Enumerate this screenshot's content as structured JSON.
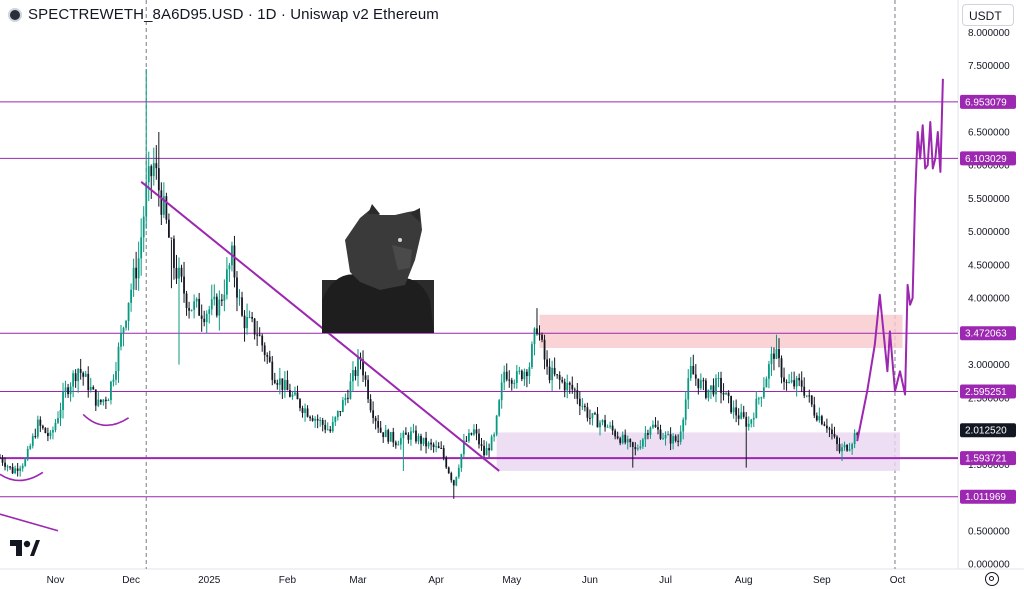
{
  "header": {
    "title": "SPECTREWETH_8A6D95.USD · 1D · Uniswap v2 Ethereum",
    "currency": "USDT"
  },
  "colors": {
    "up": "#089981",
    "down": "#131722",
    "accent": "#9c27b0",
    "resistance_zone": "#f8c8cc",
    "support_zone": "#ead6f0",
    "current_price_bg": "#131722"
  },
  "chart_data": {
    "type": "candlestick",
    "y_axis": {
      "range": [
        0,
        8.2
      ],
      "ticks": [
        "8.000000",
        "7.500000",
        "7.000000",
        "6.500000",
        "6.000000",
        "5.500000",
        "5.000000",
        "4.500000",
        "4.000000",
        "3.500000",
        "3.000000",
        "2.500000",
        "2.000000",
        "1.500000",
        "1.000000",
        "0.500000",
        "0.000000"
      ]
    },
    "x_axis": {
      "range": [
        "2024-10-10",
        "2025-10-25"
      ],
      "ticks": [
        {
          "label": "Nov",
          "date": "2024-11-01"
        },
        {
          "label": "Dec",
          "date": "2024-12-01"
        },
        {
          "label": "2025",
          "date": "2025-01-01"
        },
        {
          "label": "Feb",
          "date": "2025-02-01"
        },
        {
          "label": "Mar",
          "date": "2025-03-01"
        },
        {
          "label": "Apr",
          "date": "2025-04-01"
        },
        {
          "label": "May",
          "date": "2025-05-01"
        },
        {
          "label": "Jun",
          "date": "2025-06-01"
        },
        {
          "label": "Jul",
          "date": "2025-07-01"
        },
        {
          "label": "Aug",
          "date": "2025-08-01"
        },
        {
          "label": "Sep",
          "date": "2025-09-01"
        },
        {
          "label": "Oct",
          "date": "2025-10-01"
        }
      ]
    },
    "series": [
      {
        "price_path": [
          {
            "date": "2024-10-10",
            "value": 1.6
          },
          {
            "date": "2024-10-15",
            "value": 1.4
          },
          {
            "date": "2024-10-20",
            "value": 1.55
          },
          {
            "date": "2024-10-25",
            "value": 2.1
          },
          {
            "date": "2024-10-30",
            "value": 1.9
          },
          {
            "date": "2024-11-05",
            "value": 2.6
          },
          {
            "date": "2024-11-10",
            "value": 2.95
          },
          {
            "date": "2024-11-14",
            "value": 2.7
          },
          {
            "date": "2024-11-18",
            "value": 2.4
          },
          {
            "date": "2024-11-22",
            "value": 2.55
          },
          {
            "date": "2024-11-26",
            "value": 3.2
          },
          {
            "date": "2024-11-30",
            "value": 4.0
          },
          {
            "date": "2024-12-04",
            "value": 4.6
          },
          {
            "date": "2024-12-07",
            "value": 5.6
          },
          {
            "date": "2024-12-10",
            "value": 6.0
          },
          {
            "date": "2024-12-14",
            "value": 5.3
          },
          {
            "date": "2024-12-18",
            "value": 4.5
          },
          {
            "date": "2024-12-24",
            "value": 3.9
          },
          {
            "date": "2024-12-30",
            "value": 3.8
          },
          {
            "date": "2025-01-05",
            "value": 3.9
          },
          {
            "date": "2025-01-10",
            "value": 4.6
          },
          {
            "date": "2025-01-14",
            "value": 3.7
          },
          {
            "date": "2025-01-20",
            "value": 3.5
          },
          {
            "date": "2025-01-26",
            "value": 2.9
          },
          {
            "date": "2025-02-01",
            "value": 2.6
          },
          {
            "date": "2025-02-06",
            "value": 2.4
          },
          {
            "date": "2025-02-12",
            "value": 2.2
          },
          {
            "date": "2025-02-18",
            "value": 2.0
          },
          {
            "date": "2025-02-24",
            "value": 2.5
          },
          {
            "date": "2025-03-02",
            "value": 3.1
          },
          {
            "date": "2025-03-06",
            "value": 2.4
          },
          {
            "date": "2025-03-10",
            "value": 2.0
          },
          {
            "date": "2025-03-16",
            "value": 1.85
          },
          {
            "date": "2025-03-22",
            "value": 1.95
          },
          {
            "date": "2025-03-28",
            "value": 1.8
          },
          {
            "date": "2025-04-03",
            "value": 1.7
          },
          {
            "date": "2025-04-08",
            "value": 1.2
          },
          {
            "date": "2025-04-12",
            "value": 1.8
          },
          {
            "date": "2025-04-16",
            "value": 2.0
          },
          {
            "date": "2025-04-20",
            "value": 1.65
          },
          {
            "date": "2025-04-24",
            "value": 1.9
          },
          {
            "date": "2025-04-28",
            "value": 2.9
          },
          {
            "date": "2025-05-03",
            "value": 2.8
          },
          {
            "date": "2025-05-08",
            "value": 3.0
          },
          {
            "date": "2025-05-11",
            "value": 3.6
          },
          {
            "date": "2025-05-15",
            "value": 2.9
          },
          {
            "date": "2025-05-20",
            "value": 2.75
          },
          {
            "date": "2025-05-26",
            "value": 2.6
          },
          {
            "date": "2025-06-01",
            "value": 2.2
          },
          {
            "date": "2025-06-07",
            "value": 2.1
          },
          {
            "date": "2025-06-13",
            "value": 1.9
          },
          {
            "date": "2025-06-19",
            "value": 1.7
          },
          {
            "date": "2025-06-25",
            "value": 2.1
          },
          {
            "date": "2025-07-01",
            "value": 1.9
          },
          {
            "date": "2025-07-06",
            "value": 1.85
          },
          {
            "date": "2025-07-11",
            "value": 2.9
          },
          {
            "date": "2025-07-17",
            "value": 2.6
          },
          {
            "date": "2025-07-22",
            "value": 2.7
          },
          {
            "date": "2025-07-28",
            "value": 2.3
          },
          {
            "date": "2025-08-03",
            "value": 2.1
          },
          {
            "date": "2025-08-08",
            "value": 2.6
          },
          {
            "date": "2025-08-13",
            "value": 3.2
          },
          {
            "date": "2025-08-18",
            "value": 2.7
          },
          {
            "date": "2025-08-24",
            "value": 2.7
          },
          {
            "date": "2025-08-29",
            "value": 2.3
          },
          {
            "date": "2025-09-03",
            "value": 2.1
          },
          {
            "date": "2025-09-08",
            "value": 1.7
          },
          {
            "date": "2025-09-12",
            "value": 1.8
          },
          {
            "date": "2025-09-15",
            "value": 2.01
          }
        ],
        "projection": [
          {
            "date": "2025-09-15",
            "value": 1.85
          },
          {
            "date": "2025-09-19",
            "value": 2.6
          },
          {
            "date": "2025-09-22",
            "value": 3.3
          },
          {
            "date": "2025-09-24",
            "value": 4.05
          },
          {
            "date": "2025-09-27",
            "value": 2.9
          },
          {
            "date": "2025-09-28",
            "value": 3.5
          },
          {
            "date": "2025-09-30",
            "value": 2.6
          },
          {
            "date": "2025-10-02",
            "value": 2.9
          },
          {
            "date": "2025-10-04",
            "value": 2.55
          },
          {
            "date": "2025-10-05",
            "value": 4.2
          },
          {
            "date": "2025-10-06",
            "value": 3.9
          },
          {
            "date": "2025-10-07",
            "value": 4.0
          },
          {
            "date": "2025-10-08",
            "value": 5.5
          },
          {
            "date": "2025-10-09",
            "value": 6.5
          },
          {
            "date": "2025-10-10",
            "value": 6.1
          },
          {
            "date": "2025-10-11",
            "value": 6.6
          },
          {
            "date": "2025-10-12",
            "value": 5.95
          },
          {
            "date": "2025-10-13",
            "value": 6.0
          },
          {
            "date": "2025-10-14",
            "value": 6.65
          },
          {
            "date": "2025-10-15",
            "value": 5.95
          },
          {
            "date": "2025-10-16",
            "value": 6.1
          },
          {
            "date": "2025-10-17",
            "value": 6.5
          },
          {
            "date": "2025-10-18",
            "value": 5.9
          },
          {
            "date": "2025-10-19",
            "value": 7.3
          }
        ]
      }
    ],
    "horizontal_levels": [
      "6.953079",
      "6.103029",
      "3.472063",
      "2.595251",
      "1.593721",
      "1.011969"
    ],
    "current_price": "2.012520",
    "trendline": {
      "start": {
        "date": "2024-12-05",
        "value": 5.75
      },
      "end": {
        "date": "2025-04-26",
        "value": 1.4
      }
    },
    "zones": [
      {
        "name": "resistance",
        "from": "2025-05-12",
        "to": "2025-10-03",
        "low": 3.25,
        "high": 3.75
      },
      {
        "name": "support",
        "from": "2025-04-25",
        "to": "2025-10-02",
        "low": 1.4,
        "high": 1.98
      }
    ],
    "vertical_markers": [
      "2024-12-07",
      "2025-09-30"
    ],
    "grid": false,
    "legend": "none"
  }
}
